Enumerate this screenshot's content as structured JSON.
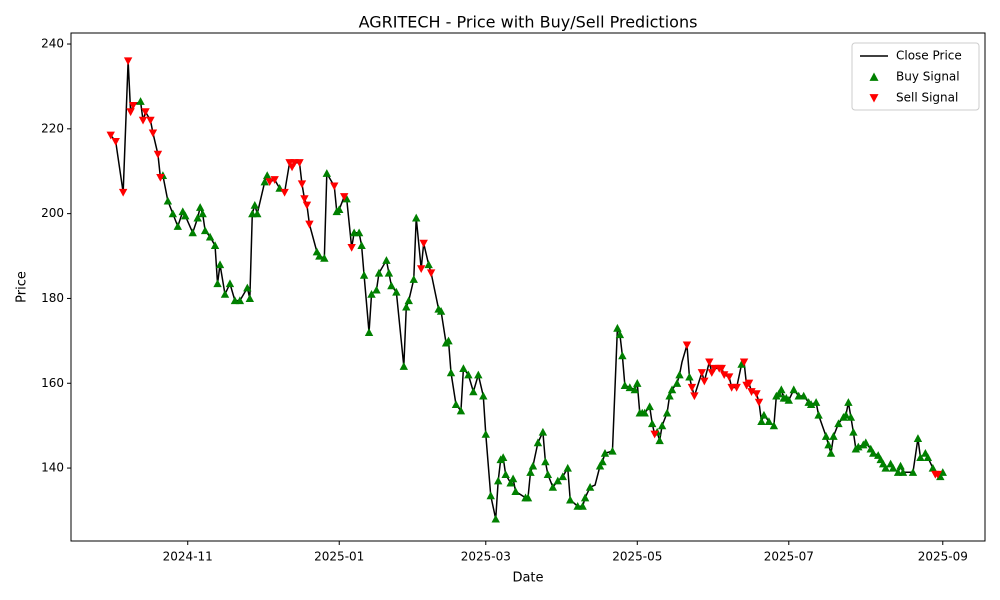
{
  "chart_data": {
    "type": "line",
    "title": "AGRITECH - Price with Buy/Sell Predictions",
    "xlabel": "Date",
    "ylabel": "Price",
    "xlim": [
      "2024-09-15",
      "2025-09-18"
    ],
    "xticks": [
      {
        "value": "2024-11-01",
        "label": "2024-11"
      },
      {
        "value": "2025-01-01",
        "label": "2025-01"
      },
      {
        "value": "2025-03-01",
        "label": "2025-03"
      },
      {
        "value": "2025-05-01",
        "label": "2025-05"
      },
      {
        "value": "2025-07-01",
        "label": "2025-07"
      },
      {
        "value": "2025-09-01",
        "label": "2025-09"
      }
    ],
    "ylim": [
      122.8,
      242.6
    ],
    "yticks": [
      140,
      160,
      180,
      200,
      220,
      240
    ],
    "grid": false,
    "legend": "upper right",
    "series": [
      {
        "name": "Close Price",
        "type": "line",
        "color": "#000000",
        "x": [
          "2024-10-01",
          "2024-10-03",
          "2024-10-06",
          "2024-10-08",
          "2024-10-09",
          "2024-10-10",
          "2024-10-13",
          "2024-10-14",
          "2024-10-15",
          "2024-10-17",
          "2024-10-18",
          "2024-10-20",
          "2024-10-21",
          "2024-10-22",
          "2024-10-24",
          "2024-10-26",
          "2024-10-28",
          "2024-10-30",
          "2024-10-31",
          "2024-11-03",
          "2024-11-05",
          "2024-11-06",
          "2024-11-07",
          "2024-11-08",
          "2024-11-10",
          "2024-11-12",
          "2024-11-13",
          "2024-11-14",
          "2024-11-16",
          "2024-11-18",
          "2024-11-20",
          "2024-11-22",
          "2024-11-25",
          "2024-11-26",
          "2024-11-27",
          "2024-11-28",
          "2024-11-29",
          "2024-12-02",
          "2024-12-03",
          "2024-12-04",
          "2024-12-06",
          "2024-12-08",
          "2024-12-10",
          "2024-12-12",
          "2024-12-13",
          "2024-12-14",
          "2024-12-16",
          "2024-12-17",
          "2024-12-18",
          "2024-12-19",
          "2024-12-20",
          "2024-12-23",
          "2024-12-24",
          "2024-12-26",
          "2024-12-27",
          "2024-12-30",
          "2024-12-31",
          "2025-01-01",
          "2025-01-03",
          "2025-01-04",
          "2025-01-06",
          "2025-01-07",
          "2025-01-09",
          "2025-01-10",
          "2025-01-11",
          "2025-01-13",
          "2025-01-14",
          "2025-01-16",
          "2025-01-17",
          "2025-01-20",
          "2025-01-21",
          "2025-01-22",
          "2025-01-24",
          "2025-01-27",
          "2025-01-28",
          "2025-01-29",
          "2025-01-31",
          "2025-02-01",
          "2025-02-03",
          "2025-02-04",
          "2025-02-06",
          "2025-02-07",
          "2025-02-10",
          "2025-02-11",
          "2025-02-13",
          "2025-02-14",
          "2025-02-15",
          "2025-02-17",
          "2025-02-19",
          "2025-02-20",
          "2025-02-22",
          "2025-02-24",
          "2025-02-26",
          "2025-02-28",
          "2025-03-01",
          "2025-03-03",
          "2025-03-05",
          "2025-03-06",
          "2025-03-07",
          "2025-03-08",
          "2025-03-09",
          "2025-03-11",
          "2025-03-12",
          "2025-03-13",
          "2025-03-17",
          "2025-03-18",
          "2025-03-19",
          "2025-03-20",
          "2025-03-22",
          "2025-03-24",
          "2025-03-25",
          "2025-03-26",
          "2025-03-28",
          "2025-03-30",
          "2025-04-01",
          "2025-04-03",
          "2025-04-04",
          "2025-04-07",
          "2025-04-09",
          "2025-04-10",
          "2025-04-12",
          "2025-04-14",
          "2025-04-16",
          "2025-04-17",
          "2025-04-18",
          "2025-04-21",
          "2025-04-23",
          "2025-04-24",
          "2025-04-25",
          "2025-04-26",
          "2025-04-28",
          "2025-04-30",
          "2025-05-01",
          "2025-05-02",
          "2025-05-03",
          "2025-05-04",
          "2025-05-06",
          "2025-05-07",
          "2025-05-08",
          "2025-05-09",
          "2025-05-10",
          "2025-05-11",
          "2025-05-13",
          "2025-05-14",
          "2025-05-15",
          "2025-05-17",
          "2025-05-18",
          "2025-05-19",
          "2025-05-21",
          "2025-05-22",
          "2025-05-23",
          "2025-05-24",
          "2025-05-27",
          "2025-05-28",
          "2025-05-30",
          "2025-05-31",
          "2025-06-01",
          "2025-06-03",
          "2025-06-04",
          "2025-06-05",
          "2025-06-07",
          "2025-06-08",
          "2025-06-10",
          "2025-06-12",
          "2025-06-13",
          "2025-06-14",
          "2025-06-15",
          "2025-06-16",
          "2025-06-18",
          "2025-06-19",
          "2025-06-20",
          "2025-06-21",
          "2025-06-23",
          "2025-06-25",
          "2025-06-26",
          "2025-06-27",
          "2025-06-28",
          "2025-06-29",
          "2025-06-30",
          "2025-07-01",
          "2025-07-03",
          "2025-07-05",
          "2025-07-07",
          "2025-07-09",
          "2025-07-10",
          "2025-07-12",
          "2025-07-13",
          "2025-07-16",
          "2025-07-17",
          "2025-07-18",
          "2025-07-19",
          "2025-07-21",
          "2025-07-23",
          "2025-07-24",
          "2025-07-25",
          "2025-07-26",
          "2025-07-27",
          "2025-07-28",
          "2025-07-29",
          "2025-07-31",
          "2025-08-01",
          "2025-08-03",
          "2025-08-04",
          "2025-08-06",
          "2025-08-07",
          "2025-08-08",
          "2025-08-09",
          "2025-08-11",
          "2025-08-12",
          "2025-08-14",
          "2025-08-15",
          "2025-08-16",
          "2025-08-20",
          "2025-08-22",
          "2025-08-23",
          "2025-08-25",
          "2025-08-26",
          "2025-08-28",
          "2025-08-29",
          "2025-08-30",
          "2025-08-31",
          "2025-09-01"
        ],
        "values": [
          218.5,
          217,
          205,
          236,
          224,
          225.5,
          226.5,
          222,
          224,
          222,
          219,
          214,
          208.5,
          209,
          203,
          200,
          197,
          200.5,
          199.5,
          195.5,
          199,
          201.5,
          200,
          196,
          194.5,
          192.5,
          183.5,
          188,
          181,
          183.5,
          179.5,
          179.5,
          182.5,
          180,
          200,
          202,
          200,
          207.5,
          209,
          207.5,
          208,
          206,
          205,
          212,
          211,
          212,
          212,
          207,
          203.5,
          202,
          197.5,
          191,
          190,
          189.5,
          209.5,
          206.5,
          200.5,
          201,
          204,
          203.5,
          192,
          195.5,
          195.5,
          192.5,
          185.5,
          172,
          181,
          182,
          186,
          189,
          186,
          183,
          181.5,
          164,
          178,
          179.5,
          184.5,
          199,
          187,
          193,
          188,
          186,
          177.5,
          177,
          169.5,
          170,
          162.5,
          155,
          153.5,
          163.5,
          162,
          158,
          162,
          157,
          148,
          133.5,
          128,
          137,
          142,
          142.5,
          138.5,
          136.5,
          137.5,
          134.5,
          133,
          133,
          139,
          140.5,
          146,
          148.5,
          141.5,
          138.5,
          135.5,
          137,
          138,
          140,
          132.5,
          131,
          131,
          133,
          135.5,
          136,
          140.5,
          141.5,
          143.5,
          144,
          173,
          171.5,
          166.5,
          159.5,
          159,
          158.5,
          160,
          153,
          153,
          153,
          154.5,
          150.5,
          148,
          148.5,
          146.5,
          150,
          153,
          157,
          158.5,
          160,
          162,
          165,
          169,
          161.5,
          159,
          157,
          162.5,
          160.5,
          165,
          162.5,
          163.5,
          163.5,
          163.5,
          162,
          161.5,
          159,
          159,
          164.5,
          165,
          159.5,
          160,
          158,
          157.5,
          155.5,
          151,
          152.5,
          151,
          150,
          157,
          157.5,
          158.5,
          156.5,
          156.5,
          156,
          158.5,
          157,
          157,
          155.5,
          155,
          155.5,
          152.5,
          147.5,
          145.5,
          143.5,
          147.5,
          150.5,
          152,
          152.5,
          155.5,
          152,
          148.5,
          144.5,
          145,
          145.5,
          146,
          144.5,
          143.5,
          143,
          142,
          141,
          140,
          141,
          140,
          139,
          140.5,
          139,
          139,
          147,
          142.5,
          143.5,
          142.5,
          140,
          138.5,
          138.5,
          138,
          139
        ]
      },
      {
        "name": "Buy Signal",
        "type": "scatter",
        "marker": "triangle-up",
        "color": "#008000",
        "x": [
          "2024-10-13",
          "2024-10-22",
          "2024-10-24",
          "2024-10-26",
          "2024-10-28",
          "2024-10-30",
          "2024-10-31",
          "2024-11-03",
          "2024-11-05",
          "2024-11-06",
          "2024-11-07",
          "2024-11-08",
          "2024-11-10",
          "2024-11-12",
          "2024-11-13",
          "2024-11-14",
          "2024-11-16",
          "2024-11-18",
          "2024-11-20",
          "2024-11-22",
          "2024-11-25",
          "2024-11-26",
          "2024-11-27",
          "2024-11-28",
          "2024-11-29",
          "2024-12-02",
          "2024-12-03",
          "2024-12-08",
          "2024-12-23",
          "2024-12-24",
          "2024-12-26",
          "2024-12-27",
          "2024-12-31",
          "2025-01-01",
          "2025-01-04",
          "2025-01-07",
          "2025-01-09",
          "2025-01-10",
          "2025-01-11",
          "2025-01-13",
          "2025-01-14",
          "2025-01-16",
          "2025-01-17",
          "2025-01-20",
          "2025-01-21",
          "2025-01-22",
          "2025-01-24",
          "2025-01-27",
          "2025-01-28",
          "2025-01-29",
          "2025-01-31",
          "2025-02-01",
          "2025-02-06",
          "2025-02-10",
          "2025-02-11",
          "2025-02-13",
          "2025-02-14",
          "2025-02-15",
          "2025-02-17",
          "2025-02-19",
          "2025-02-20",
          "2025-02-22",
          "2025-02-24",
          "2025-02-26",
          "2025-02-28",
          "2025-03-01",
          "2025-03-03",
          "2025-03-05",
          "2025-03-06",
          "2025-03-07",
          "2025-03-08",
          "2025-03-09",
          "2025-03-11",
          "2025-03-12",
          "2025-03-13",
          "2025-03-17",
          "2025-03-18",
          "2025-03-19",
          "2025-03-20",
          "2025-03-22",
          "2025-03-24",
          "2025-03-25",
          "2025-03-26",
          "2025-03-28",
          "2025-03-30",
          "2025-04-01",
          "2025-04-03",
          "2025-04-04",
          "2025-04-07",
          "2025-04-09",
          "2025-04-10",
          "2025-04-12",
          "2025-04-16",
          "2025-04-17",
          "2025-04-18",
          "2025-04-21",
          "2025-04-23",
          "2025-04-24",
          "2025-04-25",
          "2025-04-26",
          "2025-04-28",
          "2025-04-30",
          "2025-05-01",
          "2025-05-02",
          "2025-05-03",
          "2025-05-04",
          "2025-05-06",
          "2025-05-07",
          "2025-05-09",
          "2025-05-10",
          "2025-05-11",
          "2025-05-13",
          "2025-05-14",
          "2025-05-15",
          "2025-05-17",
          "2025-05-18",
          "2025-05-22",
          "2025-06-12",
          "2025-06-20",
          "2025-06-21",
          "2025-06-23",
          "2025-06-25",
          "2025-06-26",
          "2025-06-27",
          "2025-06-28",
          "2025-06-29",
          "2025-06-30",
          "2025-07-01",
          "2025-07-03",
          "2025-07-05",
          "2025-07-07",
          "2025-07-09",
          "2025-07-10",
          "2025-07-12",
          "2025-07-13",
          "2025-07-16",
          "2025-07-17",
          "2025-07-18",
          "2025-07-19",
          "2025-07-21",
          "2025-07-23",
          "2025-07-24",
          "2025-07-25",
          "2025-07-26",
          "2025-07-27",
          "2025-07-28",
          "2025-07-29",
          "2025-07-31",
          "2025-08-01",
          "2025-08-03",
          "2025-08-04",
          "2025-08-06",
          "2025-08-07",
          "2025-08-08",
          "2025-08-09",
          "2025-08-11",
          "2025-08-12",
          "2025-08-14",
          "2025-08-15",
          "2025-08-16",
          "2025-08-20",
          "2025-08-22",
          "2025-08-23",
          "2025-08-25",
          "2025-08-26",
          "2025-08-28",
          "2025-08-31",
          "2025-09-01"
        ],
        "values": [
          226.5,
          209,
          203,
          200,
          197,
          200.5,
          199.5,
          195.5,
          199,
          201.5,
          200,
          196,
          194.5,
          192.5,
          183.5,
          188,
          181,
          183.5,
          179.5,
          179.5,
          182.5,
          180,
          200,
          202,
          200,
          207.5,
          209,
          206,
          191,
          190,
          189.5,
          209.5,
          200.5,
          201,
          203.5,
          195.5,
          195.5,
          192.5,
          185.5,
          172,
          181,
          182,
          186,
          189,
          186,
          183,
          181.5,
          164,
          178,
          179.5,
          184.5,
          199,
          188,
          177.5,
          177,
          169.5,
          170,
          162.5,
          155,
          153.5,
          163.5,
          162,
          158,
          162,
          157,
          148,
          133.5,
          128,
          137,
          142,
          142.5,
          138.5,
          136.5,
          137.5,
          134.5,
          133,
          133,
          139,
          140.5,
          146,
          148.5,
          141.5,
          138.5,
          135.5,
          137,
          138,
          140,
          132.5,
          131,
          131,
          133,
          135.5,
          140.5,
          141.5,
          143.5,
          144,
          173,
          171.5,
          166.5,
          159.5,
          159,
          158.5,
          160,
          153,
          153,
          153,
          154.5,
          150.5,
          148.5,
          146.5,
          150,
          153,
          157,
          158.5,
          160,
          162,
          161.5,
          164.5,
          151,
          152.5,
          151,
          150,
          157,
          157.5,
          158.5,
          156.5,
          156.5,
          156,
          158.5,
          157,
          157,
          155.5,
          155,
          155.5,
          152.5,
          147.5,
          145.5,
          143.5,
          147.5,
          150.5,
          152,
          152.5,
          155.5,
          152,
          148.5,
          144.5,
          145,
          145.5,
          146,
          144.5,
          143.5,
          143,
          142,
          141,
          140,
          141,
          140,
          139,
          140.5,
          139,
          139,
          147,
          142.5,
          143.5,
          142.5,
          140,
          138,
          139
        ]
      },
      {
        "name": "Sell Signal",
        "type": "scatter",
        "marker": "triangle-down",
        "color": "#ff0000",
        "x": [
          "2024-10-01",
          "2024-10-03",
          "2024-10-06",
          "2024-10-08",
          "2024-10-09",
          "2024-10-10",
          "2024-10-14",
          "2024-10-15",
          "2024-10-17",
          "2024-10-18",
          "2024-10-20",
          "2024-10-21",
          "2024-12-04",
          "2024-12-06",
          "2024-12-10",
          "2024-12-12",
          "2024-12-13",
          "2024-12-14",
          "2024-12-16",
          "2024-12-17",
          "2024-12-18",
          "2024-12-19",
          "2024-12-20",
          "2024-12-30",
          "2025-01-03",
          "2025-01-06",
          "2025-02-03",
          "2025-02-04",
          "2025-02-07",
          "2025-05-08",
          "2025-05-21",
          "2025-05-23",
          "2025-05-24",
          "2025-05-27",
          "2025-05-28",
          "2025-05-30",
          "2025-05-31",
          "2025-06-01",
          "2025-06-03",
          "2025-06-04",
          "2025-06-05",
          "2025-06-07",
          "2025-06-08",
          "2025-06-10",
          "2025-06-13",
          "2025-06-14",
          "2025-06-15",
          "2025-06-16",
          "2025-06-18",
          "2025-06-19",
          "2025-08-29",
          "2025-08-30"
        ],
        "values": [
          218.5,
          217,
          205,
          236,
          224,
          225.5,
          222,
          224,
          222,
          219,
          214,
          208.5,
          207.5,
          208,
          205,
          212,
          211,
          212,
          212,
          207,
          203.5,
          202,
          197.5,
          206.5,
          204,
          192,
          187,
          193,
          186,
          148,
          169,
          159,
          157,
          162.5,
          160.5,
          165,
          162.5,
          163.5,
          163.5,
          163.5,
          162,
          161.5,
          159,
          159,
          165,
          159.5,
          160,
          158,
          157.5,
          155.5,
          138.5,
          138.5
        ]
      }
    ]
  }
}
